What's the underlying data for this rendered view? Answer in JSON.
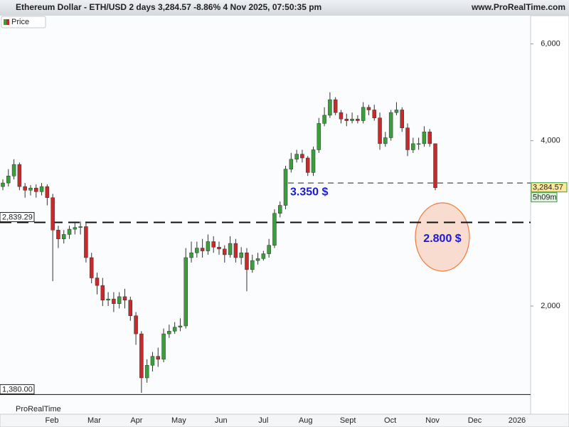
{
  "header": {
    "title": "Ethereum Dollar - ETH/USD 2 days 3,284.57 -8.86% 4 Nov 2025, 07:50:35 pm",
    "site": "www.ProRealTime.com"
  },
  "panel_label": "Price",
  "watermark": "ProRealTime",
  "chart_data": {
    "type": "candlestick",
    "log_scale": true,
    "ylim": [
      1271,
      6755
    ],
    "yticks": [
      {
        "value": 2000,
        "label": "2,000"
      },
      {
        "value": 4000,
        "label": "4,000"
      },
      {
        "value": 6000,
        "label": "6,000"
      }
    ],
    "x_labels": [
      "Feb",
      "Mar",
      "Apr",
      "May",
      "Jun",
      "Jul",
      "Aug",
      "Sept",
      "Oct",
      "Nov",
      "Dec",
      "2026"
    ],
    "up_color": "#3a9e3a",
    "down_color": "#c62a2a",
    "open": [
      3300,
      3350,
      3450,
      3620,
      3300,
      3250,
      3280,
      3230,
      3300,
      3150,
      2750,
      2650,
      2700,
      2760,
      2780,
      2790,
      2450,
      2250,
      2180,
      2050,
      2060,
      2020,
      2080,
      2050,
      1920,
      1780,
      1480,
      1560,
      1620,
      1600,
      1780,
      1800,
      1830,
      1840,
      2450,
      2500,
      2550,
      2520,
      2620,
      2560,
      2540,
      2480,
      2600,
      2450,
      2500,
      2330,
      2420,
      2440,
      2490,
      2580,
      2950,
      3050,
      3550,
      3700,
      3780,
      3720,
      3500,
      3850,
      4300,
      4450,
      4750,
      4500,
      4380,
      4350,
      4380,
      4350,
      4600,
      4550,
      4400,
      3950,
      4050,
      4500,
      4550,
      4220,
      3850,
      3950,
      3950,
      4150,
      3950
    ],
    "high": [
      3400,
      3550,
      3700,
      3650,
      3350,
      3320,
      3330,
      3350,
      3330,
      3200,
      2800,
      2750,
      2800,
      2850,
      2850,
      2850,
      2500,
      2300,
      2250,
      2120,
      2120,
      2120,
      2150,
      2080,
      1950,
      1800,
      1600,
      1650,
      1680,
      1820,
      1850,
      1870,
      1900,
      2550,
      2620,
      2620,
      2650,
      2700,
      2680,
      2620,
      2580,
      2680,
      2650,
      2560,
      2550,
      2480,
      2500,
      2520,
      2650,
      3000,
      3100,
      3600,
      3800,
      3850,
      3850,
      3750,
      3900,
      4400,
      4600,
      4900,
      4800,
      4550,
      4480,
      4500,
      4450,
      4700,
      4650,
      4650,
      4500,
      4150,
      4550,
      4700,
      4600,
      4300,
      4050,
      4050,
      4250,
      4200,
      3950
    ],
    "low": [
      3250,
      3300,
      3400,
      3250,
      3150,
      3180,
      3150,
      3180,
      3050,
      2220,
      2550,
      2600,
      2650,
      2700,
      2700,
      2400,
      2200,
      2100,
      2000,
      2000,
      1950,
      1980,
      1980,
      1880,
      1700,
      1390,
      1450,
      1520,
      1550,
      1580,
      1750,
      1780,
      1800,
      1820,
      2400,
      2450,
      2450,
      2480,
      2500,
      2480,
      2400,
      2450,
      2400,
      2380,
      2128,
      2300,
      2380,
      2420,
      2450,
      2550,
      2900,
      3000,
      3500,
      3650,
      3650,
      3450,
      3450,
      3800,
      4250,
      4400,
      4450,
      4300,
      4250,
      4300,
      4300,
      4300,
      4450,
      4350,
      3850,
      3900,
      4000,
      4450,
      4150,
      3750,
      3800,
      3850,
      3900,
      3900,
      3250
    ],
    "close": [
      3350,
      3450,
      3620,
      3300,
      3250,
      3280,
      3230,
      3300,
      3150,
      2750,
      2650,
      2700,
      2760,
      2780,
      2790,
      2450,
      2250,
      2180,
      2050,
      2060,
      2020,
      2080,
      2050,
      1920,
      1780,
      1480,
      1560,
      1620,
      1600,
      1780,
      1800,
      1830,
      1840,
      2450,
      2500,
      2550,
      2520,
      2620,
      2560,
      2540,
      2480,
      2600,
      2450,
      2500,
      2330,
      2420,
      2440,
      2490,
      2580,
      2950,
      3050,
      3550,
      3700,
      3780,
      3720,
      3500,
      3850,
      4300,
      4450,
      4750,
      4500,
      4380,
      4350,
      4380,
      4350,
      4600,
      4550,
      4400,
      3950,
      4050,
      4500,
      4550,
      4220,
      3850,
      3950,
      3950,
      4150,
      3950,
      3284.57
    ],
    "last": {
      "value": 3284.57,
      "label": "3,284.57",
      "timer": "5h09m"
    },
    "levels": [
      {
        "value": 2839.29,
        "label": "2,839.29"
      },
      {
        "value": 1380,
        "label": "1,380.00"
      }
    ],
    "resistance": {
      "value": 3350,
      "label": "3.350 $"
    },
    "target": {
      "value": 2800,
      "label": "2.800 $"
    }
  }
}
